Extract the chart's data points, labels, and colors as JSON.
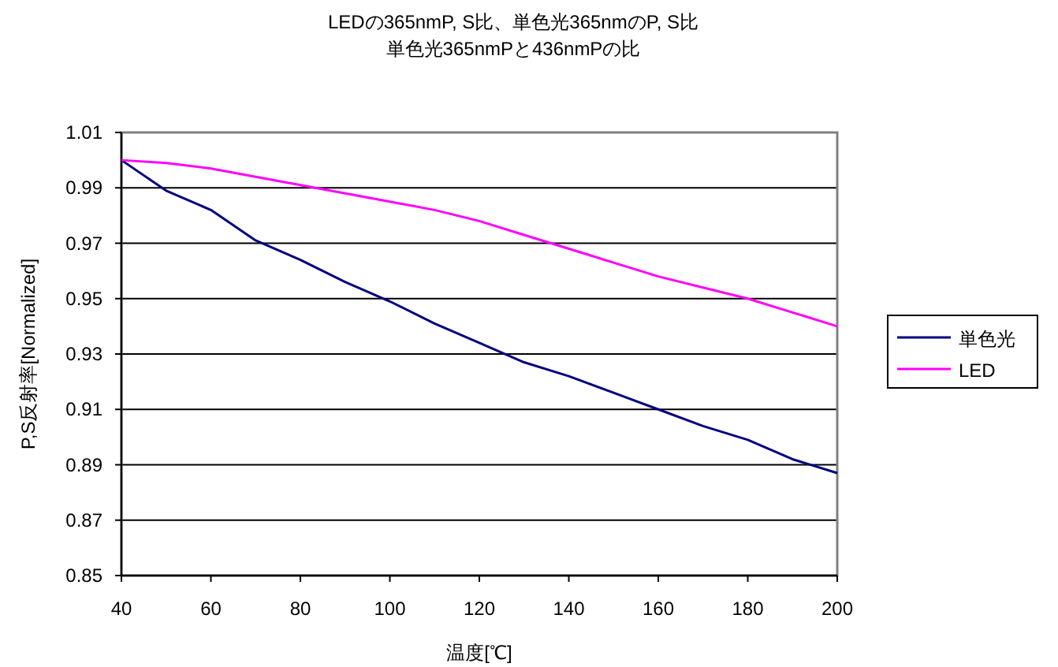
{
  "chart_data": {
    "type": "line",
    "title": "LEDの365nmP, S比、単色光365nmのP, S比",
    "subtitle": "単色光365nmPと436nmPの比",
    "xlabel": "温度[℃]",
    "ylabel": "P,S反射率[Normalized]",
    "x": [
      40,
      50,
      60,
      70,
      80,
      90,
      100,
      110,
      120,
      130,
      140,
      150,
      160,
      170,
      180,
      190,
      200
    ],
    "series": [
      {
        "name": "単色光",
        "color": "#000080",
        "values": [
          1.0,
          0.989,
          0.982,
          0.971,
          0.964,
          0.956,
          0.949,
          0.941,
          0.934,
          0.927,
          0.922,
          0.916,
          0.91,
          0.904,
          0.899,
          0.892,
          0.887
        ]
      },
      {
        "name": "LED",
        "color": "#ff00ff",
        "values": [
          1.0,
          0.999,
          0.997,
          0.994,
          0.991,
          0.988,
          0.985,
          0.982,
          0.978,
          0.973,
          0.968,
          0.963,
          0.958,
          0.954,
          0.95,
          0.945,
          0.94
        ]
      }
    ],
    "xlim": [
      40,
      200
    ],
    "xticks": [
      40,
      60,
      80,
      100,
      120,
      140,
      160,
      180,
      200
    ],
    "ylim": [
      0.85,
      1.01
    ],
    "yticks": [
      {
        "value": 0.85,
        "label": "0.85"
      },
      {
        "value": 0.87,
        "label": "0.87"
      },
      {
        "value": 0.89,
        "label": "0.89"
      },
      {
        "value": 0.91,
        "label": "0.91"
      },
      {
        "value": 0.93,
        "label": "0.93"
      },
      {
        "value": 0.95,
        "label": "0.95"
      },
      {
        "value": 0.97,
        "label": "0.97"
      },
      {
        "value": 0.99,
        "label": "0.99"
      },
      {
        "value": 1.01,
        "label": "1.01"
      }
    ],
    "grid": "y",
    "legend": "right",
    "marker": "none",
    "line_style": "solid"
  }
}
